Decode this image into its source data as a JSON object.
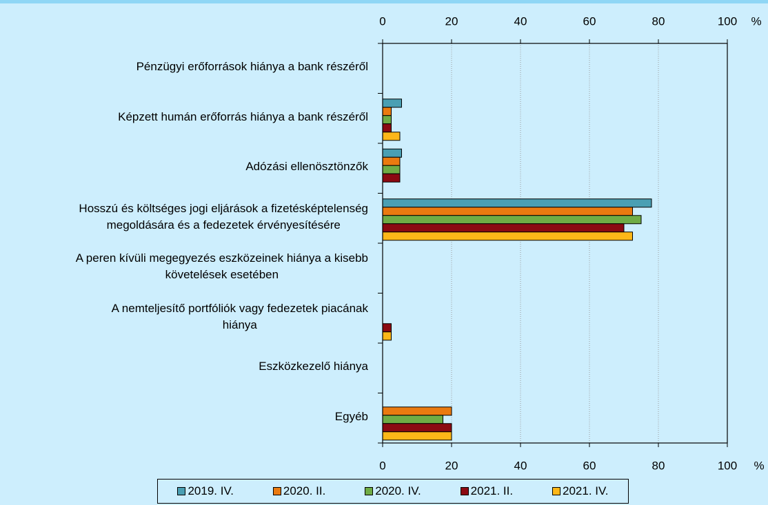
{
  "chart_data": {
    "type": "hbar",
    "categories": [
      [
        "Pénzügyi erőforrások hiánya a bank részéről"
      ],
      [
        "Képzett humán erőforrás hiánya a bank részéről"
      ],
      [
        "Adózási ellenösztönzők"
      ],
      [
        "Hosszú és költséges jogi eljárások a fizetésképtelenség",
        "megoldására és a fedezetek érvényesítésére"
      ],
      [
        "A peren kívüli megegyezés eszközeinek hiánya a kisebb",
        "követelések esetében"
      ],
      [
        "A nemteljesítő portfóliók vagy fedezetek piacának",
        "hiánya"
      ],
      [
        "Eszközkezelő hiánya"
      ],
      [
        "Egyéb"
      ]
    ],
    "series": [
      {
        "name": "2019. IV.",
        "color": "#4a9fb3",
        "values": [
          0,
          5.5,
          5.5,
          78,
          0,
          0,
          0,
          0
        ]
      },
      {
        "name": "2020. II.",
        "color": "#ea7a10",
        "values": [
          0,
          2.5,
          5,
          72.5,
          0,
          0,
          0,
          20
        ]
      },
      {
        "name": "2020. IV.",
        "color": "#6fac45",
        "values": [
          0,
          2.5,
          5,
          75,
          0,
          0,
          0,
          17.5
        ]
      },
      {
        "name": "2021. II.",
        "color": "#8b0a12",
        "values": [
          0,
          2.5,
          5,
          70,
          0,
          2.5,
          0,
          20
        ]
      },
      {
        "name": "2021. IV.",
        "color": "#fdb718",
        "values": [
          0,
          5,
          0,
          72.5,
          0,
          2.5,
          0,
          20
        ]
      }
    ],
    "xlim": [
      0,
      100
    ],
    "xticks": [
      0,
      20,
      40,
      60,
      80,
      100
    ],
    "unit": "%",
    "grid": true
  }
}
